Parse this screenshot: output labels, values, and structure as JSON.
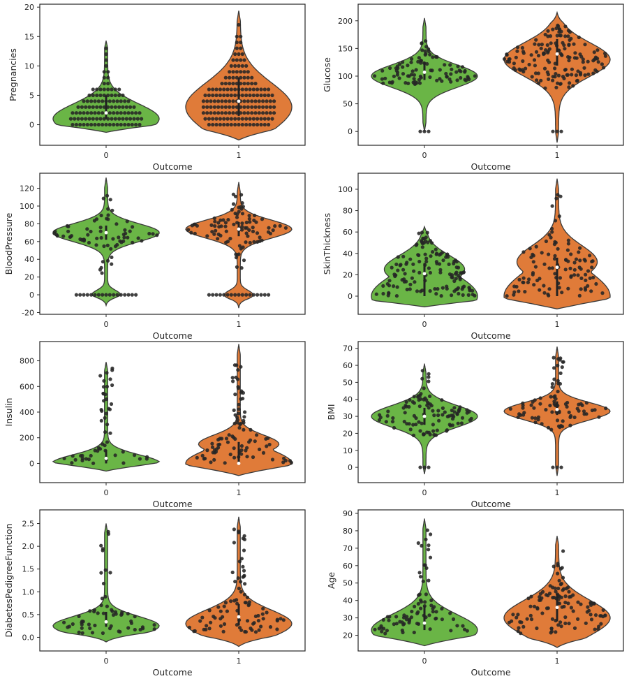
{
  "colors": {
    "outcome_0": "#6ab546",
    "outcome_1": "#e07b39",
    "points": "#262626",
    "frame": "#262626",
    "violin_edge": "#3a3a3a"
  },
  "chart_data": [
    {
      "type": "violin",
      "subtype": "violin-with-swarm",
      "title": "",
      "xlabel": "Outcome",
      "ylabel": "Pregnancies",
      "categories": [
        "0",
        "1"
      ],
      "ylim": [
        -3.5,
        20.5
      ],
      "yticks": [
        0,
        5,
        10,
        15,
        20
      ],
      "grid": false,
      "legend": "none",
      "distribution": {
        "0": {
          "range": [
            -1.3,
            14.3
          ],
          "median": 2,
          "q1": 1,
          "q3": 5,
          "mode": 1
        },
        "1": {
          "range": [
            -2.6,
            19.4
          ],
          "median": 4,
          "q1": 1.5,
          "q3": 8,
          "mode": 3
        }
      },
      "swarm_levels": {
        "0": [
          0,
          1,
          2,
          3,
          4,
          5,
          6,
          7,
          8,
          9,
          10,
          11,
          12,
          13
        ],
        "1": [
          0,
          1,
          2,
          3,
          4,
          5,
          6,
          7,
          8,
          9,
          10,
          11,
          12,
          13,
          14,
          15,
          17
        ]
      }
    },
    {
      "type": "violin",
      "subtype": "violin-with-swarm",
      "title": "",
      "xlabel": "Outcome",
      "ylabel": "Glucose",
      "categories": [
        "0",
        "1"
      ],
      "ylim": [
        -25,
        230
      ],
      "yticks": [
        0,
        50,
        100,
        150,
        200
      ],
      "grid": false,
      "legend": "none",
      "distribution": {
        "0": {
          "range": [
            0,
            205
          ],
          "median": 107,
          "q1": 93,
          "q3": 125,
          "mode": 100,
          "outliers": [
            0
          ]
        },
        "1": {
          "range": [
            -20,
            215
          ],
          "median": 140,
          "q1": 119,
          "q3": 167,
          "mode": 130,
          "outliers": [
            0
          ]
        }
      },
      "swarm_span": {
        "0": [
          85,
          197
        ],
        "1": [
          78,
          199
        ]
      }
    },
    {
      "type": "violin",
      "subtype": "violin-with-swarm",
      "title": "",
      "xlabel": "Outcome",
      "ylabel": "BloodPressure",
      "categories": [
        "0",
        "1"
      ],
      "ylim": [
        -22,
        137
      ],
      "yticks": [
        -20,
        0,
        20,
        40,
        60,
        80,
        100,
        120
      ],
      "grid": false,
      "legend": "none",
      "distribution": {
        "0": {
          "range": [
            -12,
            132
          ],
          "median": 70,
          "q1": 62,
          "q3": 78,
          "mode": 70,
          "zero_cluster": true
        },
        "1": {
          "range": [
            -15,
            127
          ],
          "median": 74,
          "q1": 66,
          "q3": 82,
          "mode": 74,
          "zero_cluster": true
        }
      },
      "swarm_span": {
        "0": [
          24,
          122
        ],
        "1": [
          30,
          114
        ]
      }
    },
    {
      "type": "violin",
      "subtype": "violin-with-swarm",
      "title": "",
      "xlabel": "Outcome",
      "ylabel": "SkinThickness",
      "categories": [
        "0",
        "1"
      ],
      "ylim": [
        -17,
        115
      ],
      "yticks": [
        0,
        20,
        40,
        60,
        80,
        100
      ],
      "grid": false,
      "legend": "none",
      "distribution": {
        "0": {
          "range": [
            -10,
            65
          ],
          "median": 21,
          "q1": 0,
          "q3": 31,
          "mode": 0,
          "upper_mode": 25
        },
        "1": {
          "range": [
            -12,
            110
          ],
          "median": 27,
          "q1": 0,
          "q3": 36,
          "mode": 0,
          "upper_mode": 32
        }
      },
      "swarm_span": {
        "0": [
          0,
          60
        ],
        "1": [
          0,
          99
        ]
      }
    },
    {
      "type": "violin",
      "subtype": "violin-with-swarm",
      "title": "",
      "xlabel": "Outcome",
      "ylabel": "Insulin",
      "categories": [
        "0",
        "1"
      ],
      "ylim": [
        -150,
        950
      ],
      "yticks": [
        0,
        200,
        400,
        600,
        800
      ],
      "grid": false,
      "legend": "none",
      "distribution": {
        "0": {
          "range": [
            -60,
            790
          ],
          "median": 39,
          "q1": 0,
          "q3": 105,
          "mode": 0
        },
        "1": {
          "range": [
            -95,
            930
          ],
          "median": 0,
          "q1": 0,
          "q3": 167,
          "mode": 0,
          "upper_mode": 150
        }
      },
      "swarm_span": {
        "0": [
          0,
          744
        ],
        "1": [
          0,
          846
        ]
      }
    },
    {
      "type": "violin",
      "subtype": "violin-with-swarm",
      "title": "",
      "xlabel": "Outcome",
      "ylabel": "BMI",
      "categories": [
        "0",
        "1"
      ],
      "ylim": [
        -9,
        74
      ],
      "yticks": [
        0,
        10,
        20,
        30,
        40,
        50,
        60,
        70
      ],
      "grid": false,
      "legend": "none",
      "distribution": {
        "0": {
          "range": [
            -4,
            61
          ],
          "median": 30,
          "q1": 25,
          "q3": 35,
          "mode": 30,
          "outliers": [
            0
          ]
        },
        "1": {
          "range": [
            -5,
            71
          ],
          "median": 34,
          "q1": 30.8,
          "q3": 38.8,
          "mode": 33,
          "outliers": [
            0
          ]
        }
      },
      "swarm_span": {
        "0": [
          18,
          57
        ],
        "1": [
          22,
          67
        ]
      }
    },
    {
      "type": "violin",
      "subtype": "violin-with-swarm",
      "title": "",
      "xlabel": "Outcome",
      "ylabel": "DiabetesPedigreeFunction",
      "categories": [
        "0",
        "1"
      ],
      "ylim": [
        -0.3,
        2.8
      ],
      "yticks": [
        0.0,
        0.5,
        1.0,
        1.5,
        2.0,
        2.5
      ],
      "grid": false,
      "legend": "none",
      "distribution": {
        "0": {
          "range": [
            -0.1,
            2.5
          ],
          "median": 0.34,
          "q1": 0.23,
          "q3": 0.56,
          "mode": 0.25
        },
        "1": {
          "range": [
            -0.2,
            2.65
          ],
          "median": 0.45,
          "q1": 0.26,
          "q3": 0.73,
          "mode": 0.3
        }
      },
      "swarm_span": {
        "0": [
          0.08,
          2.33
        ],
        "1": [
          0.09,
          2.42
        ]
      }
    },
    {
      "type": "violin",
      "subtype": "violin-with-swarm",
      "title": "",
      "xlabel": "Outcome",
      "ylabel": "Age",
      "categories": [
        "0",
        "1"
      ],
      "ylim": [
        11,
        92
      ],
      "yticks": [
        20,
        30,
        40,
        50,
        60,
        70,
        80,
        90
      ],
      "grid": false,
      "legend": "none",
      "distribution": {
        "0": {
          "range": [
            14,
            87
          ],
          "median": 27,
          "q1": 23,
          "q3": 37,
          "mode": 23
        },
        "1": {
          "range": [
            13,
            77
          ],
          "median": 36,
          "q1": 28,
          "q3": 44,
          "mode": 30
        }
      },
      "swarm_span": {
        "0": [
          21,
          81
        ],
        "1": [
          21,
          70
        ]
      }
    }
  ]
}
